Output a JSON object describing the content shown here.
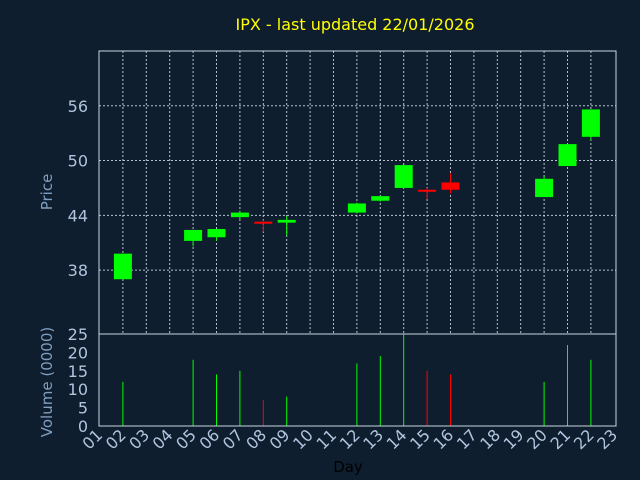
{
  "chart_data": {
    "type": "candlestick",
    "title": "IPX - last updated 22/01/2026",
    "xlabel": "Day",
    "price_panel": {
      "ylabel": "Price",
      "ylim": [
        31,
        62
      ],
      "yticks": [
        38,
        44,
        50,
        56
      ],
      "grid": true
    },
    "volume_panel": {
      "ylabel": "Volume (0000)",
      "ylim": [
        0,
        25
      ],
      "yticks": [
        0,
        5,
        10,
        15,
        20,
        25
      ],
      "grid": false
    },
    "x_ticks": [
      "01",
      "02",
      "03",
      "04",
      "05",
      "06",
      "07",
      "08",
      "09",
      "10",
      "11",
      "12",
      "13",
      "14",
      "15",
      "16",
      "17",
      "18",
      "19",
      "20",
      "21",
      "22",
      "23"
    ],
    "colors": {
      "up": "#00ff00",
      "down": "#ff0000"
    },
    "candles": [
      {
        "day": "02",
        "open": 37.0,
        "close": 39.8,
        "high": 39.8,
        "low": 37.0,
        "volume": 12
      },
      {
        "day": "05",
        "open": 41.2,
        "close": 42.4,
        "high": 42.4,
        "low": 40.6,
        "volume": 18
      },
      {
        "day": "06",
        "open": 41.6,
        "close": 42.5,
        "high": 42.5,
        "low": 41.2,
        "volume": 14
      },
      {
        "day": "07",
        "open": 43.8,
        "close": 44.3,
        "high": 44.5,
        "low": 43.5,
        "volume": 15
      },
      {
        "day": "08",
        "open": 43.3,
        "close": 43.1,
        "high": 43.5,
        "low": 42.2,
        "volume": 7
      },
      {
        "day": "09",
        "open": 43.2,
        "close": 43.5,
        "high": 43.9,
        "low": 41.8,
        "volume": 8
      },
      {
        "day": "12",
        "open": 44.3,
        "close": 45.3,
        "high": 45.4,
        "low": 44.2,
        "volume": 17
      },
      {
        "day": "13",
        "open": 45.6,
        "close": 46.1,
        "high": 46.1,
        "low": 45.5,
        "volume": 19
      },
      {
        "day": "14",
        "open": 47.0,
        "close": 49.5,
        "high": 49.5,
        "low": 47.0,
        "volume": 25
      },
      {
        "day": "15",
        "open": 46.8,
        "close": 46.6,
        "high": 47.0,
        "low": 45.8,
        "volume": 15
      },
      {
        "day": "16",
        "open": 47.6,
        "close": 46.8,
        "high": 48.6,
        "low": 46.4,
        "volume": 14
      },
      {
        "day": "20",
        "open": 46.0,
        "close": 48.0,
        "high": 48.3,
        "low": 46.0,
        "volume": 12
      },
      {
        "day": "21",
        "open": 49.4,
        "close": 51.8,
        "high": 51.8,
        "low": 49.4,
        "volume": 22
      },
      {
        "day": "22",
        "open": 52.6,
        "close": 55.6,
        "high": 55.6,
        "low": 52.2,
        "volume": 18
      }
    ]
  }
}
